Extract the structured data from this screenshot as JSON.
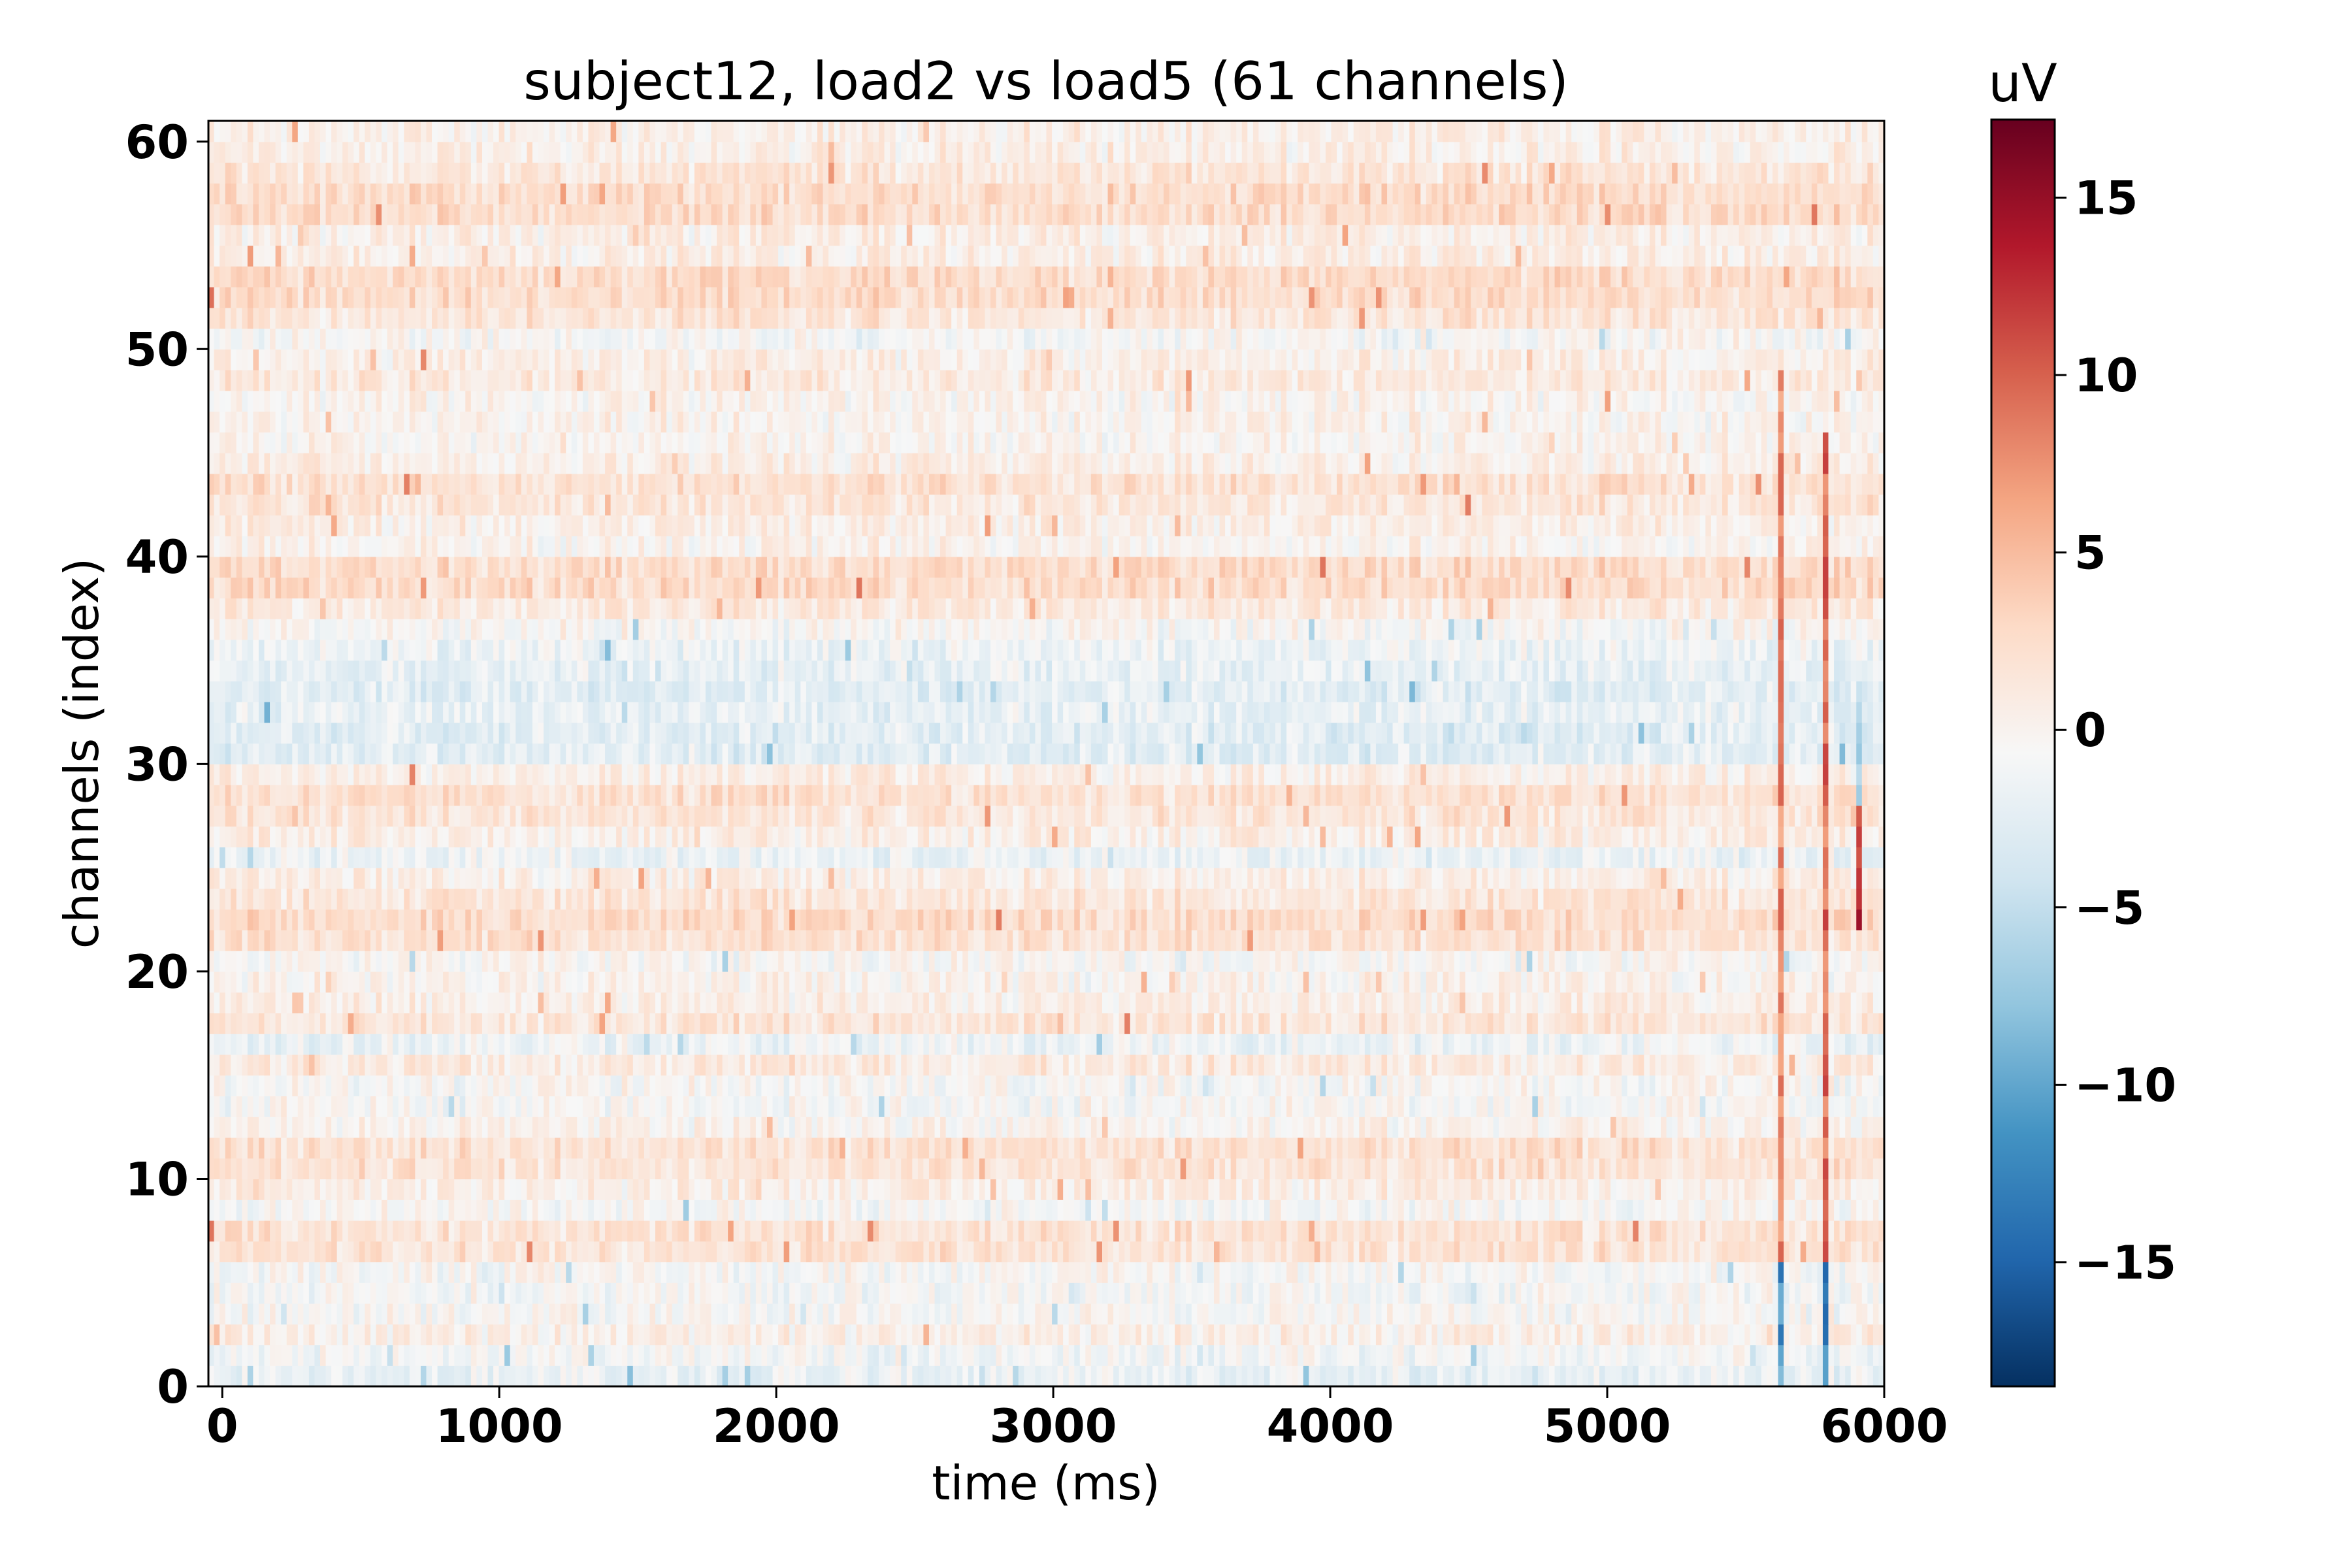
{
  "chart_data": {
    "type": "heatmap",
    "title": "subject12, load2 vs load5 (61 channels)",
    "xlabel": "time (ms)",
    "ylabel": "channels (index)",
    "xlim": [
      -50,
      6000
    ],
    "ylim": [
      0,
      61
    ],
    "x_ticks": [
      0,
      1000,
      2000,
      3000,
      4000,
      5000,
      6000
    ],
    "x_tick_labels": [
      "0",
      "1000",
      "2000",
      "3000",
      "4000",
      "5000",
      "6000"
    ],
    "y_ticks": [
      0,
      10,
      20,
      30,
      40,
      50,
      60
    ],
    "y_tick_labels": [
      "0",
      "10",
      "20",
      "30",
      "40",
      "50",
      "60"
    ],
    "n_channels": 61,
    "time_range_ms": [
      -50,
      6000
    ],
    "colormap": "RdBu_r",
    "colorbar": {
      "title": "uV",
      "vmin": -18.5,
      "vmax": 17.2,
      "ticks": [
        15,
        10,
        5,
        0,
        -5,
        -10,
        -15
      ],
      "tick_labels": [
        "15",
        "10",
        "5",
        "0",
        "−5",
        "−10",
        "−15"
      ]
    },
    "channel_mean_uV": [
      -1.8,
      -1.0,
      0.5,
      -0.5,
      -0.8,
      -0.6,
      1.8,
      1.8,
      -0.5,
      0.5,
      1.8,
      2.0,
      0.0,
      -0.5,
      -0.5,
      1.0,
      -1.5,
      1.5,
      0.5,
      0.0,
      -0.5,
      2.0,
      2.5,
      1.5,
      0.5,
      -1.5,
      0.5,
      1.5,
      2.0,
      0.5,
      -2.5,
      -2.5,
      -2.0,
      -2.5,
      -2.0,
      -1.5,
      -0.5,
      1.0,
      2.5,
      2.5,
      0.0,
      0.5,
      1.5,
      2.0,
      0.5,
      0.0,
      0.0,
      0.0,
      1.0,
      0.5,
      -0.5,
      1.5,
      2.5,
      2.5,
      0.5,
      0.5,
      2.5,
      2.5,
      1.5,
      0.5,
      0.5
    ],
    "time_events_ms": [
      {
        "t": 5630,
        "channels": [
          0,
          36
        ],
        "sign": -1,
        "amp": 14
      },
      {
        "t": 5630,
        "channels": [
          6,
          48
        ],
        "sign": 1,
        "amp": 10
      },
      {
        "t": 5780,
        "channels": [
          0,
          36
        ],
        "sign": -1,
        "amp": 16
      },
      {
        "t": 5780,
        "channels": [
          6,
          45
        ],
        "sign": 1,
        "amp": 12
      },
      {
        "t": 5910,
        "channels": [
          22,
          27
        ],
        "sign": 1,
        "amp": 17
      },
      {
        "t": 5910,
        "channels": [
          28,
          33
        ],
        "sign": -1,
        "amp": 8
      }
    ]
  }
}
